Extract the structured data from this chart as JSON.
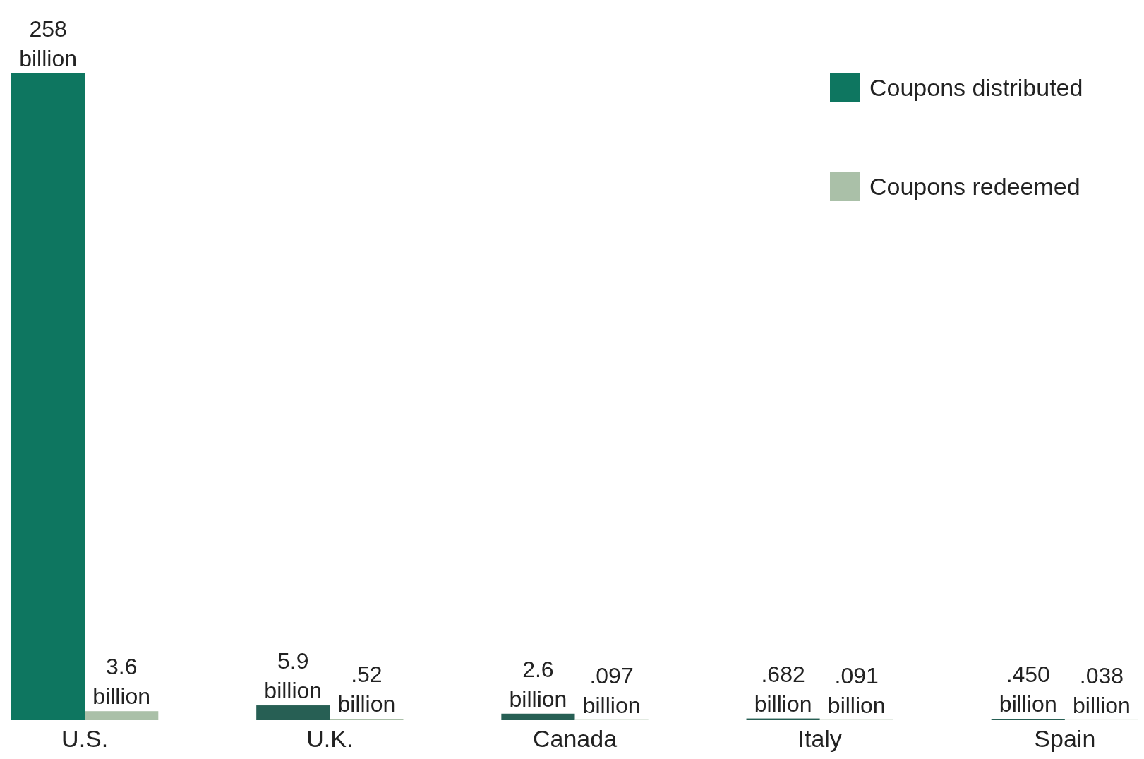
{
  "chart_data": {
    "type": "bar",
    "categories": [
      "U.S.",
      "U.K.",
      "Canada",
      "Italy",
      "Spain"
    ],
    "series": [
      {
        "name": "Coupons distributed",
        "color": "#0e7660",
        "colors": [
          "#0e7660",
          "#275f54",
          "#275f54",
          "#275f54",
          "#275f54"
        ],
        "values": [
          258,
          5.9,
          2.6,
          0.682,
          0.45
        ],
        "value_labels": [
          "258 billion",
          "5.9 billion",
          "2.6 billion",
          ".682 billion",
          ".450 billion"
        ]
      },
      {
        "name": "Coupons redeemed",
        "color": "#aac0a8",
        "values": [
          3.6,
          0.52,
          0.097,
          0.091,
          0.038
        ],
        "value_labels": [
          "3.6 billion",
          ".52 billion",
          ".097 billion",
          ".091 billion",
          ".038 billion"
        ]
      }
    ],
    "legend": "top right"
  }
}
